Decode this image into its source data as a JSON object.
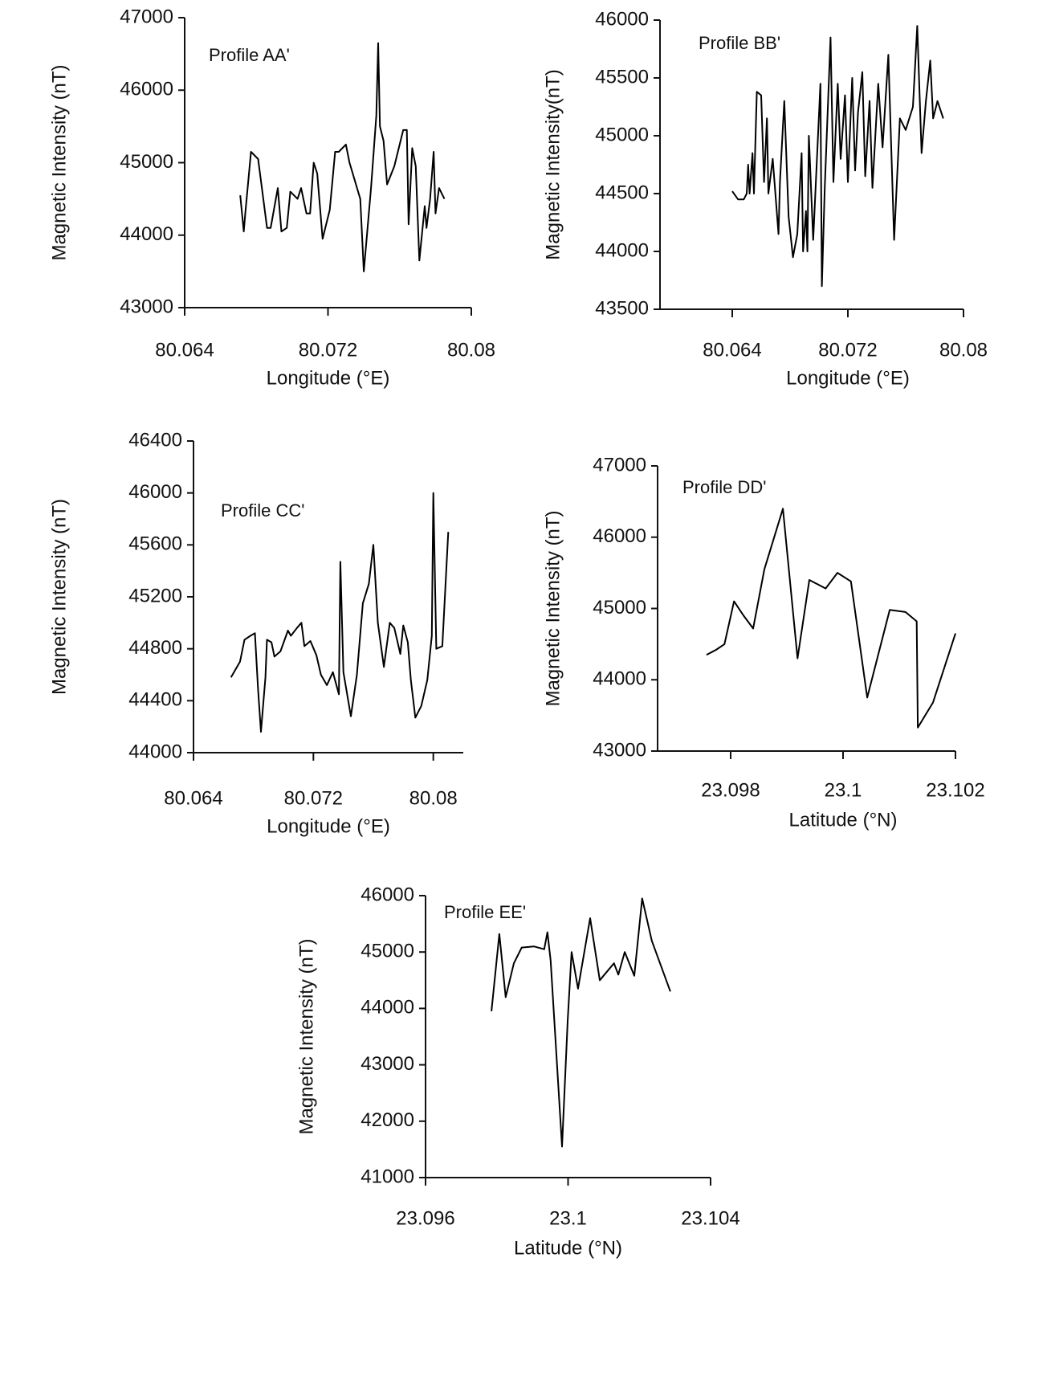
{
  "chart_data": [
    {
      "type": "line",
      "title": "Profile AA'",
      "xlabel": "Longitude (°E)",
      "ylabel": "Magnetic Intensity (nT)",
      "color": "#000000",
      "x": [
        80.0671,
        80.0673,
        80.0674,
        80.0677,
        80.0681,
        80.0686,
        80.0688,
        80.0692,
        80.0694,
        80.0697,
        80.0699,
        80.0703,
        80.0705,
        80.0708,
        80.071,
        80.0712,
        80.0714,
        80.0717,
        80.0721,
        80.0724,
        80.0726,
        80.073,
        80.0732,
        80.0738,
        80.074,
        80.0744,
        80.0747,
        80.0748,
        80.0749,
        80.0751,
        80.0753,
        80.0757,
        80.0762,
        80.0764,
        80.0765,
        80.0767,
        80.0769,
        80.0771,
        80.0774,
        80.0775,
        80.0777,
        80.0779,
        80.078,
        80.0782,
        80.0785
      ],
      "values": [
        44550,
        44050,
        44350,
        45150,
        45050,
        44100,
        44100,
        44650,
        44050,
        44100,
        44600,
        44500,
        44650,
        44300,
        44300,
        45000,
        44850,
        43950,
        44350,
        45150,
        45150,
        45250,
        45000,
        44500,
        43500,
        44650,
        45650,
        46650,
        45500,
        45300,
        44700,
        44950,
        45450,
        45450,
        44150,
        45200,
        44950,
        43650,
        44400,
        44100,
        44500,
        45150,
        44300,
        44650,
        44500
      ],
      "xlim": [
        80.064,
        80.08
      ],
      "xticks": [
        80.064,
        80.072,
        80.08
      ],
      "ylim": [
        43000,
        47000
      ],
      "yticks": [
        43000,
        44000,
        45000,
        46000,
        47000
      ]
    },
    {
      "type": "line",
      "title": "Profile BB'",
      "xlabel": "Longitude (°E)",
      "ylabel": "Magnetic Intensity(nT)",
      "color": "#000000",
      "x": [
        80.064,
        80.0644,
        80.0648,
        80.065,
        80.0651,
        80.0652,
        80.0654,
        80.0655,
        80.0657,
        80.066,
        80.0662,
        80.0664,
        80.0665,
        80.0668,
        80.0672,
        80.0673,
        80.0676,
        80.0679,
        80.0682,
        80.0685,
        80.0688,
        80.0689,
        80.0691,
        80.0692,
        80.0693,
        80.0696,
        80.0701,
        80.0702,
        80.0704,
        80.0708,
        80.071,
        80.0713,
        80.0715,
        80.0718,
        80.072,
        80.0723,
        80.0725,
        80.0727,
        80.073,
        80.0732,
        80.0735,
        80.0737,
        80.0741,
        80.0744,
        80.0748,
        80.0752,
        80.0756,
        80.076,
        80.0765,
        80.0768,
        80.0771,
        80.0774,
        80.0777,
        80.0779,
        80.0782,
        80.0786
      ],
      "values": [
        44520,
        44450,
        44450,
        44500,
        44750,
        44500,
        44850,
        44500,
        45380,
        45350,
        44600,
        45150,
        44500,
        44800,
        44150,
        44600,
        45300,
        44300,
        43950,
        44150,
        44850,
        44000,
        44350,
        44000,
        45000,
        44100,
        45450,
        43700,
        44550,
        45850,
        44600,
        45450,
        44800,
        45350,
        44600,
        45500,
        44700,
        45200,
        45550,
        44650,
        45300,
        44550,
        45450,
        44900,
        45700,
        44100,
        45150,
        45050,
        45250,
        45950,
        44850,
        45300,
        45650,
        45150,
        45300,
        45150
      ],
      "xlim": [
        80.059,
        80.08
      ],
      "xticks": [
        80.064,
        80.072,
        80.08
      ],
      "ylim": [
        43500,
        46000
      ],
      "yticks": [
        43500,
        44000,
        44500,
        45000,
        45500,
        46000
      ]
    },
    {
      "type": "line",
      "title": "Profile CC'",
      "xlabel": "Longitude (°E)",
      "ylabel": "Magnetic Intensity (nT)",
      "color": "#000000",
      "x": [
        80.0665,
        80.0671,
        80.0674,
        80.0678,
        80.0681,
        80.0683,
        80.0685,
        80.0688,
        80.0689,
        80.0692,
        80.0694,
        80.0698,
        80.0703,
        80.0705,
        80.0709,
        80.0712,
        80.0714,
        80.0718,
        80.0722,
        80.0725,
        80.0729,
        80.0733,
        80.0737,
        80.0738,
        80.074,
        80.0745,
        80.0749,
        80.0753,
        80.0757,
        80.076,
        80.0763,
        80.0767,
        80.0771,
        80.0774,
        80.0778,
        80.078,
        80.0783,
        80.0785,
        80.0788,
        80.0792,
        80.0796,
        80.0799,
        80.08,
        80.0802,
        80.0806,
        80.081
      ],
      "values": [
        44580,
        44700,
        44870,
        44900,
        44920,
        44500,
        44160,
        44580,
        44870,
        44850,
        44740,
        44780,
        44940,
        44900,
        44960,
        45000,
        44820,
        44860,
        44750,
        44600,
        44520,
        44620,
        44450,
        45470,
        44620,
        44280,
        44600,
        45150,
        45300,
        45600,
        45000,
        44660,
        45000,
        44960,
        44760,
        44980,
        44850,
        44560,
        44270,
        44360,
        44560,
        44900,
        46000,
        44800,
        44820,
        45700
      ],
      "xlim": [
        80.064,
        80.082
      ],
      "xticks": [
        80.064,
        80.072,
        80.08
      ],
      "ylim": [
        44000,
        46400
      ],
      "yticks": [
        44000,
        44400,
        44800,
        45200,
        45600,
        46000,
        46400
      ]
    },
    {
      "type": "line",
      "title": "Profile DD'",
      "xlabel": "Latitude (°N)",
      "ylabel": "Magnetic Intensity (nT)",
      "color": "#000000",
      "x": [
        23.09757,
        23.09774,
        23.09789,
        23.09806,
        23.09823,
        23.0984,
        23.0986,
        23.09893,
        23.09919,
        23.0994,
        23.09969,
        23.0999,
        23.10014,
        23.10043,
        23.10083,
        23.10111,
        23.10131,
        23.10133,
        23.1016,
        23.102
      ],
      "values": [
        44350,
        44420,
        44500,
        45100,
        44900,
        44720,
        45550,
        46400,
        44300,
        45400,
        45280,
        45500,
        45380,
        43750,
        44980,
        44950,
        44820,
        43330,
        43680,
        44650
      ],
      "xlim": [
        23.0967,
        23.102
      ],
      "xticks": [
        23.098,
        23.1,
        23.102
      ],
      "ylim": [
        43000,
        47000
      ],
      "yticks": [
        43000,
        44000,
        45000,
        46000,
        47000
      ]
    },
    {
      "type": "line",
      "title": "Profile EE'",
      "xlabel": "Latitude (°N)",
      "ylabel": "Magnetic Intensity (nT)",
      "color": "#000000",
      "x": [
        23.09785,
        23.09807,
        23.09825,
        23.09848,
        23.0987,
        23.09904,
        23.09933,
        23.09942,
        23.09951,
        23.09983,
        23.09999,
        23.1001,
        23.10028,
        23.10062,
        23.10089,
        23.10129,
        23.10141,
        23.10159,
        23.10186,
        23.10208,
        23.10235,
        23.10287
      ],
      "values": [
        43950,
        45320,
        44200,
        44800,
        45080,
        45100,
        45050,
        45350,
        44850,
        41550,
        43800,
        45000,
        44350,
        45600,
        44500,
        44800,
        44600,
        45000,
        44580,
        45950,
        45200,
        44300
      ],
      "xlim": [
        23.096,
        23.104
      ],
      "xticks": [
        23.096,
        23.1,
        23.104
      ],
      "ylim": [
        41000,
        46000
      ],
      "yticks": [
        41000,
        42000,
        43000,
        44000,
        45000,
        46000
      ]
    }
  ]
}
